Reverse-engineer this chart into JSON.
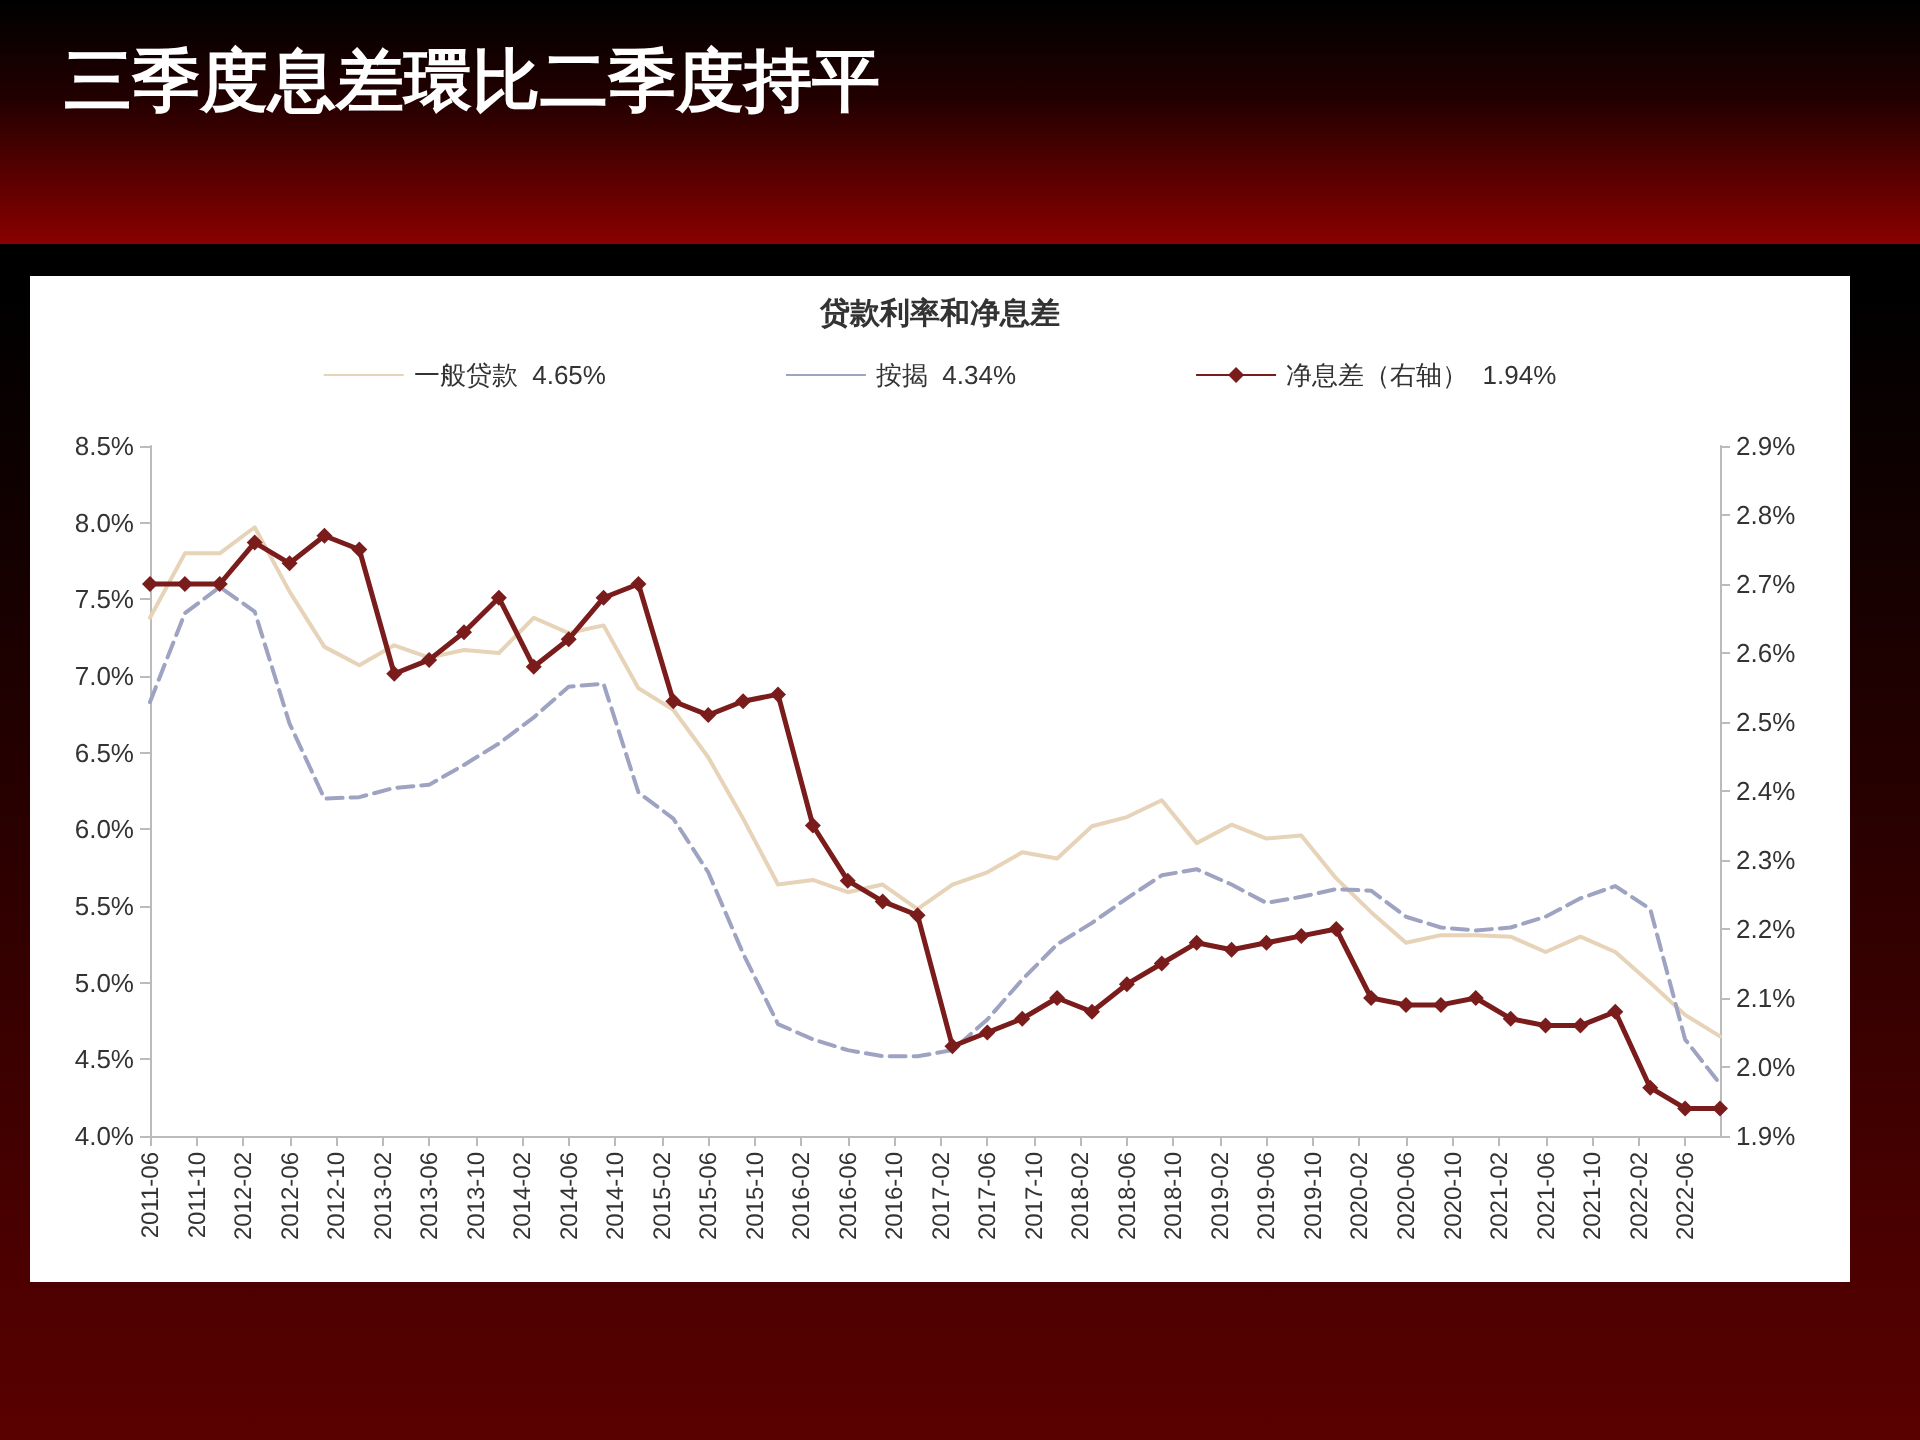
{
  "chart_data": {
    "type": "line",
    "title": "三季度息差環比二季度持平",
    "subtitle": "贷款利率和净息差",
    "x": [
      "2011-06",
      "2011-09",
      "2011-12",
      "2012-03",
      "2012-06",
      "2012-09",
      "2012-12",
      "2013-03",
      "2013-06",
      "2013-09",
      "2013-12",
      "2014-03",
      "2014-06",
      "2014-09",
      "2014-12",
      "2015-03",
      "2015-06",
      "2015-09",
      "2015-12",
      "2016-03",
      "2016-06",
      "2016-09",
      "2016-12",
      "2017-03",
      "2017-06",
      "2017-09",
      "2017-12",
      "2018-03",
      "2018-06",
      "2018-09",
      "2018-12",
      "2019-03",
      "2019-06",
      "2019-09",
      "2019-12",
      "2020-03",
      "2020-06",
      "2020-09",
      "2020-12",
      "2021-03",
      "2021-06",
      "2021-09",
      "2021-12",
      "2022-03",
      "2022-06",
      "2022-09"
    ],
    "series": [
      {
        "name": "一般贷款  4.65%",
        "color": "#e6d3b8",
        "marker": "none",
        "line_style": "solid",
        "values": [
          7.38,
          7.8,
          7.8,
          7.97,
          7.55,
          7.19,
          7.07,
          7.2,
          7.12,
          7.17,
          7.15,
          7.38,
          7.28,
          7.33,
          6.92,
          6.78,
          6.47,
          6.07,
          5.64,
          5.67,
          5.59,
          5.64,
          5.48,
          5.64,
          5.72,
          5.85,
          5.81,
          6.02,
          6.08,
          6.19,
          5.91,
          6.03,
          5.94,
          5.96,
          5.68,
          5.46,
          5.26,
          5.31,
          5.31,
          5.3,
          5.2,
          5.3,
          5.2,
          5.0,
          4.79,
          4.65
        ]
      },
      {
        "name": "按揭  4.34%",
        "color": "#9ea3c2",
        "marker": "none",
        "line_style": "dashed",
        "values": [
          6.83,
          7.41,
          7.58,
          7.42,
          6.69,
          6.2,
          6.21,
          6.27,
          6.29,
          6.42,
          6.56,
          6.73,
          6.93,
          6.95,
          6.24,
          6.07,
          5.72,
          5.19,
          4.73,
          4.63,
          4.56,
          4.52,
          4.52,
          4.56,
          4.76,
          5.02,
          5.25,
          5.39,
          5.55,
          5.7,
          5.74,
          5.64,
          5.52,
          5.56,
          5.61,
          5.6,
          5.43,
          5.36,
          5.34,
          5.36,
          5.43,
          5.55,
          5.63,
          5.48,
          4.63,
          4.34
        ]
      },
      {
        "name": "净息差（右轴）  1.94%",
        "color": "#7a1c1c",
        "marker": "diamond",
        "line_style": "solid",
        "axis": "y2",
        "values": [
          2.7,
          2.7,
          2.7,
          2.76,
          2.73,
          2.77,
          2.75,
          2.57,
          2.59,
          2.63,
          2.68,
          2.58,
          2.62,
          2.68,
          2.7,
          2.53,
          2.51,
          2.53,
          2.54,
          2.35,
          2.27,
          2.24,
          2.22,
          2.03,
          2.05,
          2.07,
          2.1,
          2.08,
          2.12,
          2.15,
          2.18,
          2.17,
          2.18,
          2.19,
          2.2,
          2.1,
          2.09,
          2.09,
          2.1,
          2.07,
          2.06,
          2.06,
          2.08,
          1.97,
          1.94,
          1.94
        ]
      }
    ],
    "xlim": [
      "2011-06",
      "2022-09"
    ],
    "xticks": [
      "2011-06",
      "2011-10",
      "2012-02",
      "2012-06",
      "2012-10",
      "2013-02",
      "2013-06",
      "2013-10",
      "2014-02",
      "2014-06",
      "2014-10",
      "2015-02",
      "2015-06",
      "2015-10",
      "2016-02",
      "2016-06",
      "2016-10",
      "2017-02",
      "2017-06",
      "2017-10",
      "2018-02",
      "2018-06",
      "2018-10",
      "2019-02",
      "2019-06",
      "2019-10",
      "2020-02",
      "2020-06",
      "2020-10",
      "2021-02",
      "2021-06",
      "2021-10",
      "2022-02",
      "2022-06"
    ],
    "ylim": [
      4.0,
      8.5
    ],
    "yticks": [
      {
        "value": 4.0,
        "label": "4.0%"
      },
      {
        "value": 4.5,
        "label": "4.5%"
      },
      {
        "value": 5.0,
        "label": "5.0%"
      },
      {
        "value": 5.5,
        "label": "5.5%"
      },
      {
        "value": 6.0,
        "label": "6.0%"
      },
      {
        "value": 6.5,
        "label": "6.5%"
      },
      {
        "value": 7.0,
        "label": "7.0%"
      },
      {
        "value": 7.5,
        "label": "7.5%"
      },
      {
        "value": 8.0,
        "label": "8.0%"
      },
      {
        "value": 8.5,
        "label": "8.5%"
      }
    ],
    "y2lim": [
      1.9,
      2.9
    ],
    "y2ticks": [
      {
        "value": 1.9,
        "label": "1.9%"
      },
      {
        "value": 2.0,
        "label": "2.0%"
      },
      {
        "value": 2.1,
        "label": "2.1%"
      },
      {
        "value": 2.2,
        "label": "2.2%"
      },
      {
        "value": 2.3,
        "label": "2.3%"
      },
      {
        "value": 2.4,
        "label": "2.4%"
      },
      {
        "value": 2.5,
        "label": "2.5%"
      },
      {
        "value": 2.6,
        "label": "2.6%"
      },
      {
        "value": 2.7,
        "label": "2.7%"
      },
      {
        "value": 2.8,
        "label": "2.8%"
      },
      {
        "value": 2.9,
        "label": "2.9%"
      }
    ],
    "grid": false,
    "legend": "top"
  }
}
